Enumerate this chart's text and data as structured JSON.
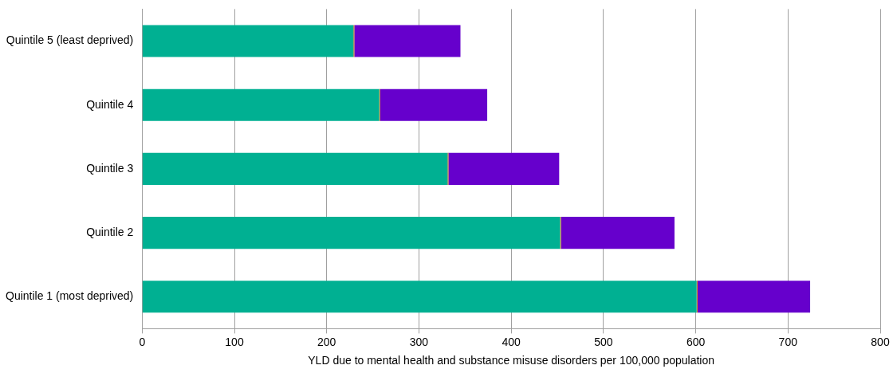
{
  "chart_data": {
    "type": "bar",
    "orientation": "horizontal",
    "stacked": true,
    "xlabel": "YLD due to mental health and substance misuse disorders per 100,000 population",
    "categories": [
      "Quintile 5 (least deprived)",
      "Quintile 4",
      "Quintile 3",
      "Quintile 2",
      "Quintile 1 (most deprived)"
    ],
    "series": [
      {
        "color": "#00b092",
        "values": [
          229,
          257,
          331,
          453,
          601
        ]
      },
      {
        "color": "#c8701e",
        "values": [
          1,
          1,
          1,
          1,
          1
        ]
      },
      {
        "color": "#6600cc",
        "values": [
          115,
          116,
          120,
          123,
          122
        ]
      }
    ],
    "xlim": [
      0,
      800
    ],
    "xticks": [
      0,
      100,
      200,
      300,
      400,
      500,
      600,
      700,
      800
    ],
    "grid": "x",
    "legend": false
  }
}
